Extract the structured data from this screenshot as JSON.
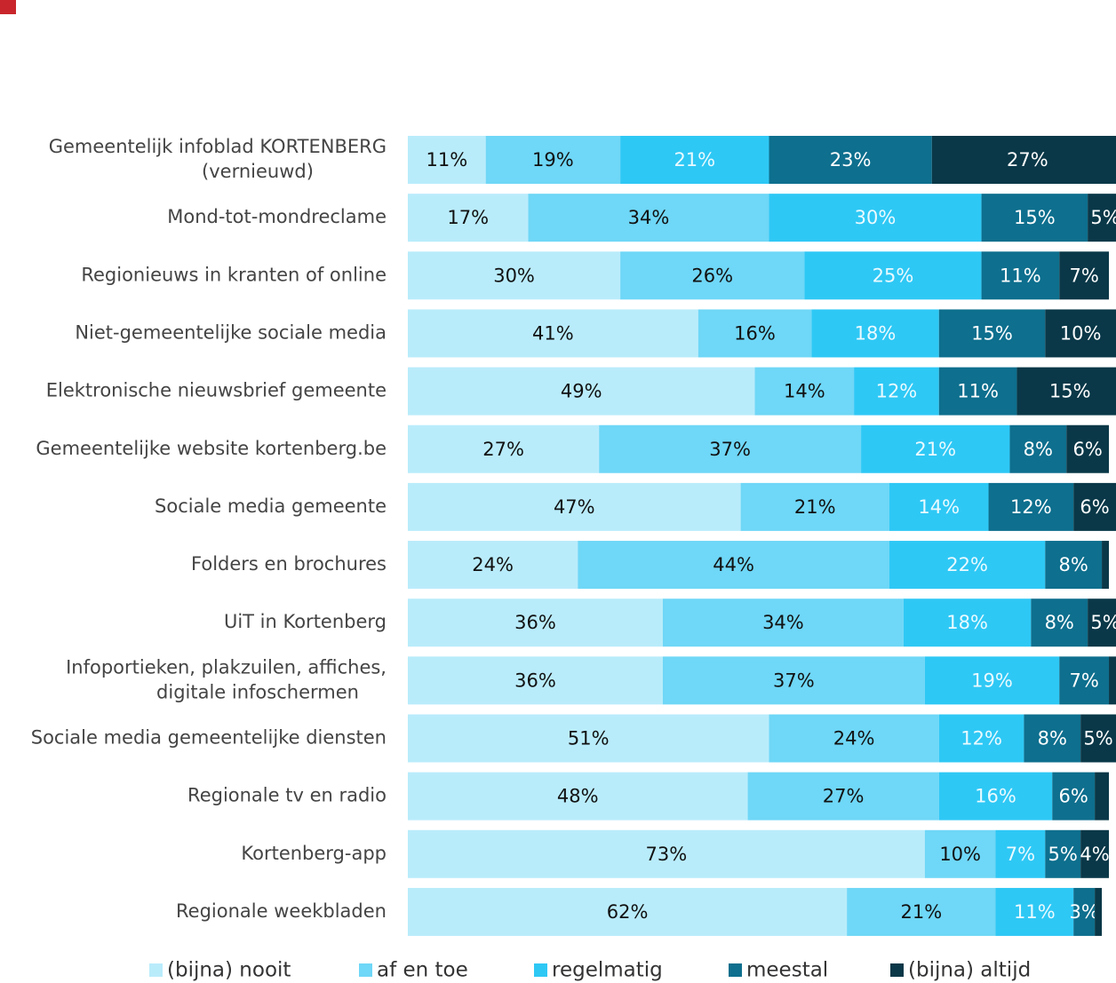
{
  "chart_data": {
    "type": "stacked-bar-horizontal",
    "categories": [
      "Gemeentelijk infoblad KORTENBERG\n(vernieuwd)",
      "Mond-tot-mondreclame",
      "Regionieuws in kranten of online",
      "Niet-gemeentelijke sociale media",
      "Elektronische nieuwsbrief gemeente",
      "Gemeentelijke website kortenberg.be",
      "Sociale media gemeente",
      "Folders en brochures",
      "UiT in Kortenberg",
      "Infoportieken, plakzuilen, affiches,\ndigitale infoschermen",
      "Sociale media gemeentelijke diensten",
      "Regionale tv en radio",
      "Kortenberg-app",
      "Regionale weekbladen"
    ],
    "xlim": [
      0,
      100
    ],
    "series": [
      {
        "name": "(bijna) nooit",
        "color": "#b9ecfb",
        "label_color": "#111111",
        "values": [
          11,
          17,
          30,
          41,
          49,
          27,
          47,
          24,
          36,
          36,
          51,
          48,
          73,
          62
        ],
        "value_labels": [
          "11%",
          "17%",
          "30%",
          "41%",
          "49%",
          "27%",
          "47%",
          "24%",
          "36%",
          "36%",
          "51%",
          "48%",
          "73%",
          "62%"
        ]
      },
      {
        "name": "af en toe",
        "color": "#6fd7f7",
        "label_color": "#111111",
        "values": [
          19,
          34,
          26,
          16,
          14,
          37,
          21,
          44,
          34,
          37,
          24,
          27,
          10,
          21
        ],
        "value_labels": [
          "19%",
          "34%",
          "26%",
          "16%",
          "14%",
          "37%",
          "21%",
          "44%",
          "34%",
          "37%",
          "24%",
          "27%",
          "10%",
          "21%"
        ]
      },
      {
        "name": "regelmatig",
        "color": "#2ec8f5",
        "label_color": "#eafaff",
        "values": [
          21,
          30,
          25,
          18,
          12,
          21,
          14,
          22,
          18,
          19,
          12,
          16,
          7,
          11
        ],
        "value_labels": [
          "21%",
          "30%",
          "25%",
          "18%",
          "12%",
          "21%",
          "14%",
          "22%",
          "18%",
          "19%",
          "12%",
          "16%",
          "7%",
          "11%"
        ]
      },
      {
        "name": "meestal",
        "color": "#0e6f8e",
        "label_color": "#ffffff",
        "values": [
          23,
          15,
          11,
          15,
          11,
          8,
          12,
          8,
          8,
          7,
          8,
          6,
          5,
          3
        ],
        "value_labels": [
          "23%",
          "15%",
          "11%",
          "15%",
          "11%",
          "8%",
          "12%",
          "8%",
          "8%",
          "7%",
          "8%",
          "6%",
          "5%",
          "3%"
        ]
      },
      {
        "name": "(bijna) altijd",
        "color": "#0a3848",
        "label_color": "#ffffff",
        "values": [
          27,
          5,
          7,
          10,
          15,
          6,
          6,
          1,
          5,
          1,
          5,
          2,
          4,
          1
        ],
        "value_labels": [
          "27%",
          "5%",
          "7%",
          "10%",
          "15%",
          "6%",
          "6%",
          null,
          "5%",
          null,
          "5%",
          null,
          "4%",
          null
        ]
      }
    ]
  }
}
